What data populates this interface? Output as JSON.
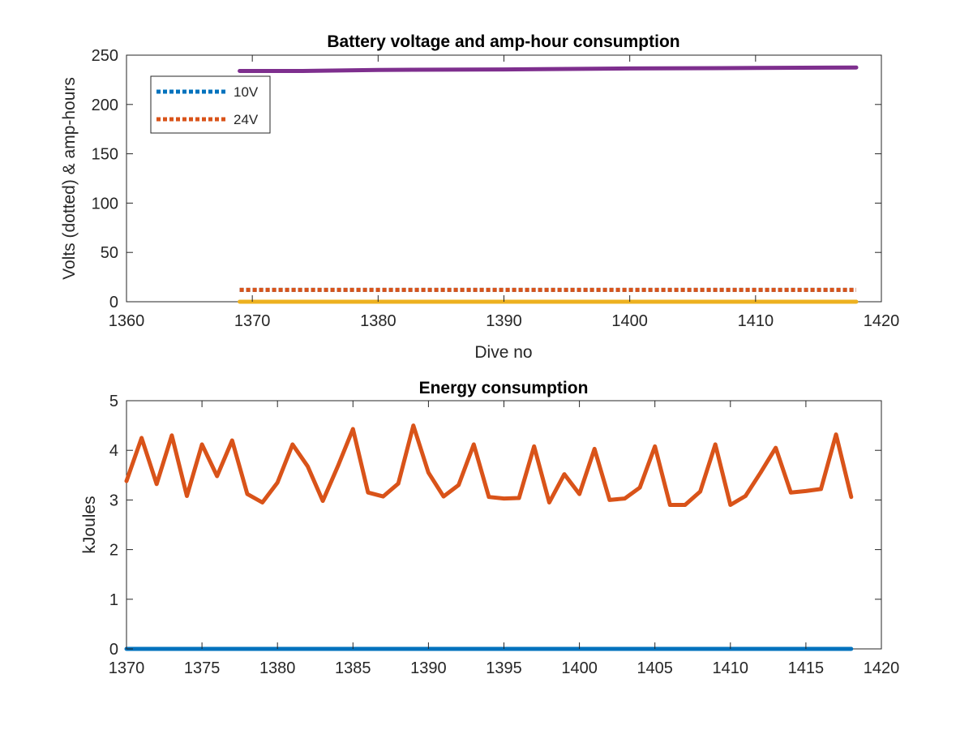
{
  "chart_data": [
    {
      "type": "line",
      "title": "Battery voltage and amp-hour consumption",
      "xlabel": "Dive no",
      "ylabel": "Volts (dotted) & amp-hours",
      "xlim": [
        1360,
        1420
      ],
      "ylim": [
        0,
        250
      ],
      "xticks": [
        "1360",
        "1370",
        "1380",
        "1390",
        "1400",
        "1410",
        "1420"
      ],
      "yticks": [
        "0",
        "50",
        "100",
        "150",
        "200",
        "250"
      ],
      "grid": false,
      "legend_position": "top-left",
      "legend": [
        "10V",
        "24V"
      ],
      "series": [
        {
          "name": "10V",
          "color": "#0072BD",
          "style": "dotted",
          "x": [
            1369,
            1418
          ],
          "y": [
            12,
            12
          ]
        },
        {
          "name": "24V",
          "color": "#D95319",
          "style": "dotted",
          "x": [
            1369,
            1418
          ],
          "y": [
            12,
            12
          ]
        },
        {
          "color": "#EDB120",
          "style": "solid",
          "x": [
            1369,
            1418
          ],
          "y": [
            0,
            0
          ]
        },
        {
          "color": "#7E2F8E",
          "style": "solid",
          "x": [
            1369,
            1374,
            1380,
            1390,
            1400,
            1410,
            1418
          ],
          "y": [
            234,
            234,
            235,
            235.5,
            236.5,
            237,
            237.5
          ]
        }
      ]
    },
    {
      "type": "line",
      "title": "Energy consumption",
      "xlabel": "",
      "ylabel": "kJoules",
      "xlim": [
        1370,
        1420
      ],
      "ylim": [
        0,
        5
      ],
      "xticks": [
        "1370",
        "1375",
        "1380",
        "1385",
        "1390",
        "1395",
        "1400",
        "1405",
        "1410",
        "1415",
        "1420"
      ],
      "yticks": [
        "0",
        "1",
        "2",
        "3",
        "4",
        "5"
      ],
      "grid": false,
      "series": [
        {
          "color": "#0072BD",
          "style": "solid",
          "x": [
            1370,
            1418
          ],
          "y": [
            0,
            0
          ]
        },
        {
          "color": "#D95319",
          "style": "solid",
          "x": [
            1370,
            1371,
            1372,
            1373,
            1374,
            1375,
            1376,
            1377,
            1378,
            1379,
            1380,
            1381,
            1382,
            1383,
            1384,
            1385,
            1386,
            1387,
            1388,
            1389,
            1390,
            1391,
            1392,
            1393,
            1394,
            1395,
            1396,
            1397,
            1398,
            1399,
            1400,
            1401,
            1402,
            1403,
            1404,
            1405,
            1406,
            1407,
            1408,
            1409,
            1410,
            1411,
            1412,
            1413,
            1414,
            1415,
            1416,
            1417,
            1418
          ],
          "y": [
            3.38,
            4.25,
            3.32,
            4.3,
            3.08,
            4.12,
            3.48,
            4.2,
            3.12,
            2.95,
            3.35,
            4.12,
            3.68,
            2.98,
            3.68,
            4.43,
            3.15,
            3.07,
            3.33,
            4.5,
            3.55,
            3.07,
            3.3,
            4.12,
            3.06,
            3.03,
            3.04,
            4.08,
            2.95,
            3.52,
            3.12,
            4.03,
            3.0,
            3.03,
            3.25,
            4.08,
            2.9,
            2.9,
            3.17,
            4.12,
            2.9,
            3.08,
            3.55,
            4.05,
            3.15,
            3.18,
            3.22,
            4.32,
            3.06
          ]
        }
      ]
    }
  ]
}
